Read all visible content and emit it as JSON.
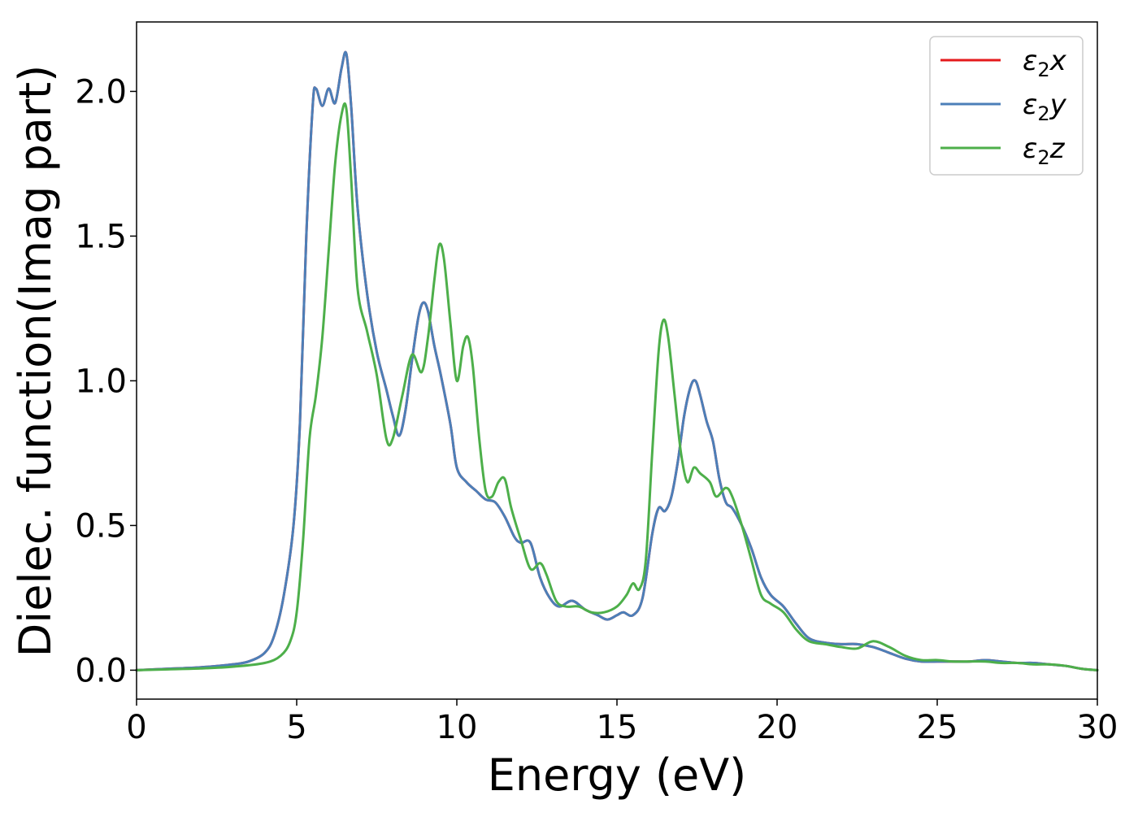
{
  "chart_data": {
    "type": "line",
    "title": "",
    "xlabel": "Energy (eV)",
    "ylabel": "Dielec. function(Imag part)",
    "xlim": [
      0,
      30
    ],
    "ylim": [
      -0.1,
      2.24
    ],
    "xticks": [
      0,
      5,
      10,
      15,
      20,
      25,
      30
    ],
    "xtick_labels": [
      "0",
      "5",
      "10",
      "15",
      "20",
      "25",
      "30"
    ],
    "yticks": [
      0.0,
      0.5,
      1.0,
      1.5,
      2.0
    ],
    "ytick_labels": [
      "0.0",
      "0.5",
      "1.0",
      "1.5",
      "2.0"
    ],
    "grid": false,
    "legend_position": "top-right",
    "series": [
      {
        "name": "ε2x",
        "legend_main": "ε",
        "legend_sub": "2",
        "legend_var": "x",
        "color": "#e41a1c",
        "x": [
          0,
          1,
          2,
          3,
          3.5,
          4,
          4.3,
          4.6,
          4.9,
          5.1,
          5.3,
          5.5,
          5.6,
          5.8,
          6.0,
          6.2,
          6.4,
          6.55,
          6.7,
          6.9,
          7.2,
          7.5,
          7.8,
          8.0,
          8.2,
          8.4,
          8.6,
          8.8,
          8.95,
          9.1,
          9.3,
          9.5,
          9.8,
          10.0,
          10.3,
          10.6,
          10.9,
          11.2,
          11.5,
          11.8,
          12.0,
          12.3,
          12.6,
          12.9,
          13.2,
          13.6,
          14.0,
          14.4,
          14.7,
          15.0,
          15.2,
          15.5,
          15.8,
          16.1,
          16.3,
          16.5,
          16.7,
          16.9,
          17.1,
          17.3,
          17.45,
          17.6,
          17.8,
          18.0,
          18.2,
          18.4,
          18.6,
          18.9,
          19.2,
          19.5,
          19.8,
          20.2,
          20.6,
          21.0,
          21.5,
          22.0,
          22.5,
          23.0,
          23.5,
          24.0,
          24.5,
          25.0,
          25.5,
          26.0,
          26.5,
          27.0,
          27.5,
          28.0,
          28.5,
          29.0,
          29.5,
          30
        ],
        "y": [
          0.0,
          0.005,
          0.01,
          0.02,
          0.03,
          0.06,
          0.12,
          0.26,
          0.5,
          0.85,
          1.5,
          1.95,
          2.01,
          1.95,
          2.01,
          1.96,
          2.08,
          2.13,
          1.95,
          1.6,
          1.3,
          1.1,
          0.97,
          0.88,
          0.81,
          0.9,
          1.07,
          1.22,
          1.27,
          1.24,
          1.12,
          1.02,
          0.85,
          0.7,
          0.65,
          0.62,
          0.59,
          0.58,
          0.53,
          0.46,
          0.44,
          0.44,
          0.32,
          0.25,
          0.22,
          0.24,
          0.21,
          0.19,
          0.175,
          0.19,
          0.2,
          0.19,
          0.25,
          0.47,
          0.56,
          0.55,
          0.6,
          0.72,
          0.88,
          0.98,
          1.0,
          0.95,
          0.86,
          0.79,
          0.66,
          0.58,
          0.56,
          0.5,
          0.42,
          0.32,
          0.26,
          0.22,
          0.16,
          0.11,
          0.095,
          0.09,
          0.09,
          0.08,
          0.06,
          0.04,
          0.03,
          0.03,
          0.03,
          0.03,
          0.035,
          0.03,
          0.025,
          0.025,
          0.02,
          0.015,
          0.005,
          0.0
        ]
      },
      {
        "name": "ε2y",
        "legend_main": "ε",
        "legend_sub": "2",
        "legend_var": "y",
        "color": "#4c7fb8",
        "x": [
          0,
          1,
          2,
          3,
          3.5,
          4,
          4.3,
          4.6,
          4.9,
          5.1,
          5.3,
          5.5,
          5.6,
          5.8,
          6.0,
          6.2,
          6.4,
          6.55,
          6.7,
          6.9,
          7.2,
          7.5,
          7.8,
          8.0,
          8.2,
          8.4,
          8.6,
          8.8,
          8.95,
          9.1,
          9.3,
          9.5,
          9.8,
          10.0,
          10.3,
          10.6,
          10.9,
          11.2,
          11.5,
          11.8,
          12.0,
          12.3,
          12.6,
          12.9,
          13.2,
          13.6,
          14.0,
          14.4,
          14.7,
          15.0,
          15.2,
          15.5,
          15.8,
          16.1,
          16.3,
          16.5,
          16.7,
          16.9,
          17.1,
          17.3,
          17.45,
          17.6,
          17.8,
          18.0,
          18.2,
          18.4,
          18.6,
          18.9,
          19.2,
          19.5,
          19.8,
          20.2,
          20.6,
          21.0,
          21.5,
          22.0,
          22.5,
          23.0,
          23.5,
          24.0,
          24.5,
          25.0,
          25.5,
          26.0,
          26.5,
          27.0,
          27.5,
          28.0,
          28.5,
          29.0,
          29.5,
          30
        ],
        "y": [
          0.0,
          0.005,
          0.01,
          0.02,
          0.03,
          0.06,
          0.12,
          0.26,
          0.5,
          0.85,
          1.5,
          1.95,
          2.01,
          1.95,
          2.01,
          1.96,
          2.08,
          2.13,
          1.95,
          1.6,
          1.3,
          1.1,
          0.97,
          0.88,
          0.81,
          0.9,
          1.07,
          1.22,
          1.27,
          1.24,
          1.12,
          1.02,
          0.85,
          0.7,
          0.65,
          0.62,
          0.59,
          0.58,
          0.53,
          0.46,
          0.44,
          0.44,
          0.32,
          0.25,
          0.22,
          0.24,
          0.21,
          0.19,
          0.175,
          0.19,
          0.2,
          0.19,
          0.25,
          0.47,
          0.56,
          0.55,
          0.6,
          0.72,
          0.88,
          0.98,
          1.0,
          0.95,
          0.86,
          0.79,
          0.66,
          0.58,
          0.56,
          0.5,
          0.42,
          0.32,
          0.26,
          0.22,
          0.16,
          0.11,
          0.095,
          0.09,
          0.09,
          0.08,
          0.06,
          0.04,
          0.03,
          0.03,
          0.03,
          0.03,
          0.035,
          0.03,
          0.025,
          0.025,
          0.02,
          0.015,
          0.005,
          0.0
        ]
      },
      {
        "name": "ε2z",
        "legend_main": "ε",
        "legend_sub": "2",
        "legend_var": "z",
        "color": "#4daf4a",
        "x": [
          0,
          1,
          2,
          3,
          4,
          4.5,
          4.8,
          5.0,
          5.2,
          5.4,
          5.6,
          5.8,
          6.0,
          6.2,
          6.4,
          6.55,
          6.7,
          6.9,
          7.2,
          7.5,
          7.8,
          8.0,
          8.3,
          8.6,
          8.9,
          9.1,
          9.3,
          9.45,
          9.6,
          9.8,
          10.0,
          10.2,
          10.35,
          10.5,
          10.7,
          10.9,
          11.1,
          11.3,
          11.5,
          11.7,
          12.0,
          12.3,
          12.6,
          12.8,
          13.1,
          13.4,
          13.8,
          14.2,
          14.6,
          15.0,
          15.3,
          15.5,
          15.7,
          15.9,
          16.1,
          16.3,
          16.45,
          16.6,
          16.8,
          17.0,
          17.2,
          17.4,
          17.6,
          17.9,
          18.1,
          18.4,
          18.6,
          18.9,
          19.2,
          19.5,
          19.8,
          20.2,
          20.6,
          21.0,
          21.5,
          22.0,
          22.5,
          23.0,
          23.5,
          24.0,
          24.5,
          25.0,
          25.5,
          26.0,
          26.5,
          27.0,
          27.5,
          28.0,
          28.5,
          29.0,
          29.5,
          30
        ],
        "y": [
          0.0,
          0.003,
          0.006,
          0.012,
          0.025,
          0.05,
          0.1,
          0.2,
          0.45,
          0.8,
          0.95,
          1.15,
          1.45,
          1.75,
          1.92,
          1.94,
          1.7,
          1.32,
          1.17,
          1.02,
          0.8,
          0.8,
          0.95,
          1.09,
          1.03,
          1.15,
          1.35,
          1.47,
          1.42,
          1.2,
          1.0,
          1.12,
          1.15,
          1.05,
          0.8,
          0.62,
          0.6,
          0.65,
          0.66,
          0.56,
          0.45,
          0.35,
          0.37,
          0.33,
          0.24,
          0.22,
          0.22,
          0.2,
          0.2,
          0.22,
          0.26,
          0.3,
          0.28,
          0.38,
          0.75,
          1.1,
          1.21,
          1.15,
          0.95,
          0.75,
          0.65,
          0.7,
          0.68,
          0.65,
          0.6,
          0.63,
          0.6,
          0.5,
          0.38,
          0.26,
          0.23,
          0.2,
          0.14,
          0.1,
          0.09,
          0.08,
          0.075,
          0.1,
          0.08,
          0.05,
          0.035,
          0.035,
          0.03,
          0.03,
          0.03,
          0.025,
          0.025,
          0.02,
          0.02,
          0.015,
          0.005,
          0.0
        ]
      }
    ]
  }
}
